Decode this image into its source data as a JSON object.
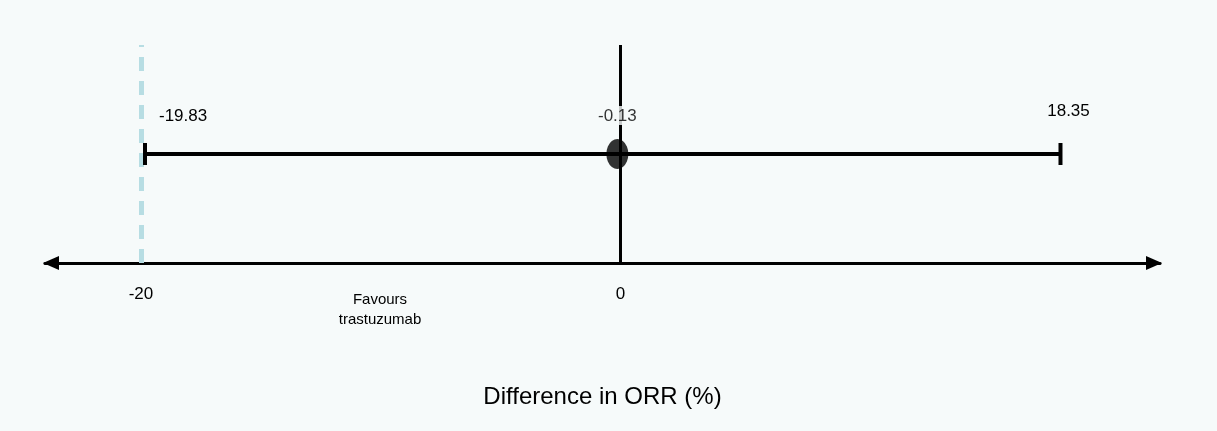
{
  "chart_data": {
    "type": "scatter",
    "orientation": "horizontal",
    "categories": [
      null
    ],
    "values": [
      -0.13
    ],
    "errors": [
      [
        -19.83,
        18.35
      ]
    ],
    "color": "#000000",
    "marker": "circle",
    "data_labels": true,
    "xlabel": "Difference in ORR (%)",
    "xlim": [
      -24,
      22.5
    ],
    "xticks": [
      -20,
      0
    ],
    "grid": false,
    "ref_lines": [
      {
        "axis": "x",
        "value": -20,
        "color": "#b7dde3",
        "line_style": "dashed"
      },
      {
        "axis": "x",
        "value": 0,
        "color": "#000000",
        "line_style": "solid"
      }
    ],
    "annotations": [
      "-19.83",
      "18.35",
      "Favours\ntrastuzumab"
    ]
  }
}
